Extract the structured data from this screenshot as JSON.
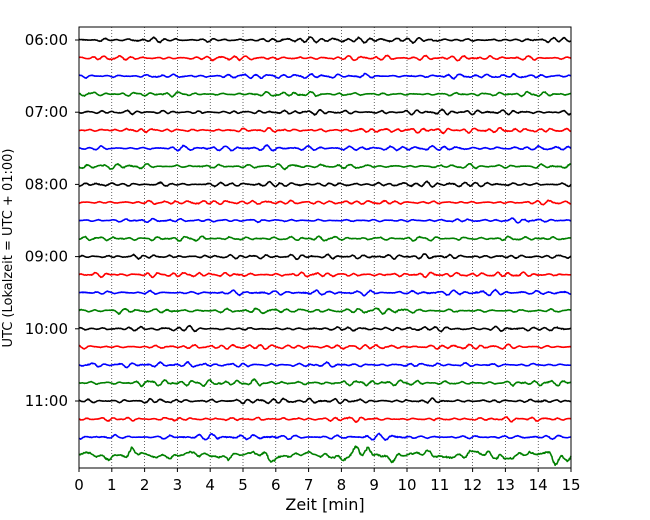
{
  "chart_data": {
    "type": "line",
    "xlabel": "Zeit  [min]",
    "ylabel": "UTC (Lokalzeit = UTC + 01:00)",
    "xlim": [
      0,
      15
    ],
    "x_ticks": [
      "0",
      "1",
      "2",
      "3",
      "4",
      "5",
      "6",
      "7",
      "8",
      "9",
      "10",
      "11",
      "12",
      "13",
      "14",
      "15"
    ],
    "y_ticks": [
      "06:00",
      "07:00",
      "08:00",
      "09:00",
      "10:00",
      "11:00"
    ],
    "grid": "vertical dotted lines at each minute",
    "trace_interval_min": 15,
    "trace_start": "06:00",
    "trace_end": "11:45",
    "series_colors": [
      "#000000",
      "#ff0000",
      "#0000ff",
      "#008000"
    ],
    "trace_count": 24,
    "trace_activity": [
      1.0,
      1.0,
      1.0,
      1.0,
      1.0,
      1.0,
      1.0,
      1.05,
      1.0,
      1.0,
      1.0,
      1.05,
      1.0,
      1.0,
      1.1,
      1.2,
      1.0,
      1.0,
      1.0,
      1.25,
      1.0,
      1.0,
      1.25,
      2.1
    ]
  }
}
